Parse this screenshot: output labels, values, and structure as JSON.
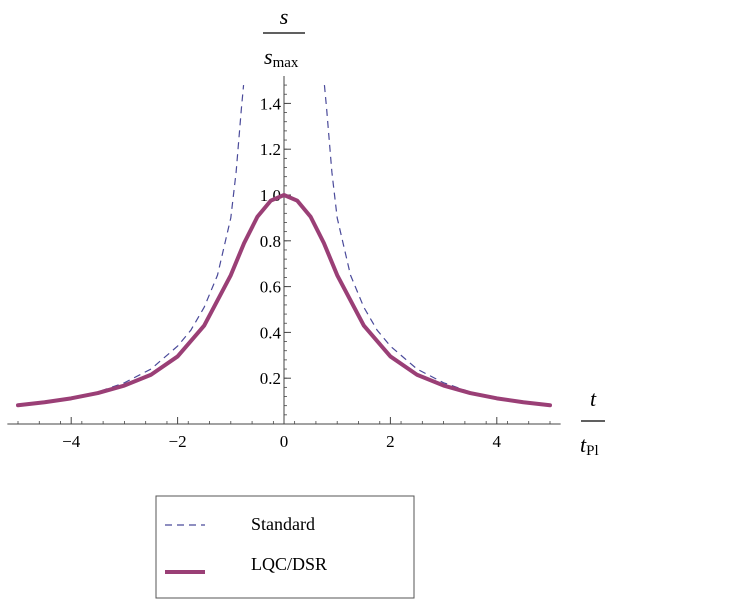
{
  "chart_data": {
    "type": "line",
    "xlabel": {
      "main": "t",
      "sub": "Pl"
    },
    "ylabel": {
      "main": "s",
      "sub": "max"
    },
    "xlim": [
      -5.2,
      5.2
    ],
    "ylim": [
      0,
      1.5
    ],
    "x_ticks": [
      -4,
      -2,
      0,
      2,
      4
    ],
    "x_tick_labels": [
      "−4",
      "−2",
      "0",
      "2",
      "4"
    ],
    "y_ticks": [
      0.2,
      0.4,
      0.6,
      0.8,
      1.0,
      1.2,
      1.4
    ],
    "y_tick_labels": [
      "0.2",
      "0.4",
      "0.6",
      "0.8",
      "1.0",
      "1.2",
      "1.4"
    ],
    "grid": false,
    "legend": "bottom-left",
    "series": [
      {
        "name": "Standard",
        "style": "dashed",
        "color": "#4a4a9a",
        "x": [
          -5.0,
          -4.5,
          -4.0,
          -3.5,
          -3.0,
          -2.5,
          -2.0,
          -1.75,
          -1.5,
          -1.25,
          -1.0,
          -0.9,
          -0.8,
          -0.76
        ],
        "y": [
          0.082,
          0.097,
          0.115,
          0.14,
          0.18,
          0.24,
          0.34,
          0.41,
          0.51,
          0.65,
          0.9,
          1.1,
          1.38,
          1.48
        ],
        "x2": [
          0.76,
          0.8,
          0.9,
          1.0,
          1.25,
          1.5,
          1.75,
          2.0,
          2.5,
          3.0,
          3.5,
          4.0,
          4.5,
          5.0
        ],
        "y2": [
          1.48,
          1.38,
          1.1,
          0.9,
          0.65,
          0.51,
          0.41,
          0.34,
          0.24,
          0.18,
          0.14,
          0.115,
          0.097,
          0.082
        ]
      },
      {
        "name": "LQC/DSR",
        "style": "solid",
        "color": "#9a3f76",
        "x": [
          -5.0,
          -4.5,
          -4.0,
          -3.5,
          -3.0,
          -2.5,
          -2.0,
          -1.5,
          -1.0,
          -0.75,
          -0.5,
          -0.25,
          0.0,
          0.25,
          0.5,
          0.75,
          1.0,
          1.5,
          2.0,
          2.5,
          3.0,
          3.5,
          4.0,
          4.5,
          5.0
        ],
        "y": [
          0.082,
          0.095,
          0.112,
          0.135,
          0.168,
          0.215,
          0.295,
          0.43,
          0.65,
          0.79,
          0.905,
          0.975,
          1.0,
          0.975,
          0.905,
          0.79,
          0.65,
          0.43,
          0.295,
          0.215,
          0.168,
          0.135,
          0.112,
          0.095,
          0.082
        ]
      }
    ]
  }
}
